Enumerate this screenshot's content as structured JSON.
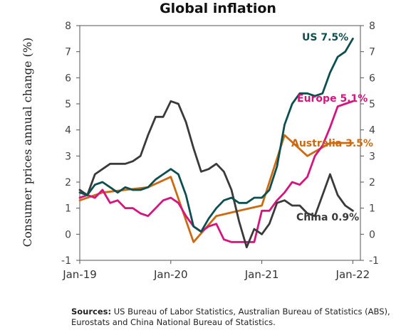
{
  "chart_data": {
    "type": "line",
    "title": "Global inflation",
    "ylabel": "Consumer prices annual change (%)",
    "xlabel": "",
    "ylim": [
      -1,
      8
    ],
    "yticks": [
      -1,
      0,
      1,
      2,
      3,
      4,
      5,
      6,
      7,
      8
    ],
    "xlim": [
      0,
      37
    ],
    "xticks": [
      {
        "label": "Jan-19",
        "x": 0
      },
      {
        "label": "Jan-20",
        "x": 12
      },
      {
        "label": "Jan-21",
        "x": 24
      },
      {
        "label": "Jan-22",
        "x": 36
      }
    ],
    "grid": false,
    "series": [
      {
        "name": "US 7.5%",
        "color": "#0d4f4f",
        "x": [
          0,
          1,
          2,
          3,
          4,
          5,
          6,
          7,
          8,
          9,
          10,
          11,
          12,
          13,
          14,
          15,
          16,
          17,
          18,
          19,
          20,
          21,
          22,
          23,
          24,
          25,
          26,
          27,
          28,
          29,
          30,
          31,
          32,
          33,
          34,
          35,
          36
        ],
        "values": [
          1.6,
          1.5,
          1.9,
          2.0,
          1.8,
          1.6,
          1.8,
          1.7,
          1.7,
          1.8,
          2.1,
          2.3,
          2.5,
          2.3,
          1.5,
          0.3,
          0.1,
          0.6,
          1.0,
          1.3,
          1.4,
          1.2,
          1.2,
          1.4,
          1.4,
          1.7,
          2.6,
          4.2,
          5.0,
          5.4,
          5.4,
          5.3,
          5.4,
          6.2,
          6.8,
          7.0,
          7.5
        ]
      },
      {
        "name": "Europe 5.1%",
        "color": "#d6147e",
        "x": [
          0,
          1,
          2,
          3,
          4,
          5,
          6,
          7,
          8,
          9,
          10,
          11,
          12,
          13,
          14,
          15,
          16,
          17,
          18,
          19,
          20,
          21,
          22,
          23,
          24,
          25,
          26,
          27,
          28,
          29,
          30,
          31,
          32,
          33,
          34,
          35,
          36
        ],
        "values": [
          1.4,
          1.5,
          1.4,
          1.7,
          1.2,
          1.3,
          1.0,
          1.0,
          0.8,
          0.7,
          1.0,
          1.3,
          1.4,
          1.2,
          0.7,
          0.3,
          0.1,
          0.3,
          0.4,
          -0.2,
          -0.3,
          -0.3,
          -0.3,
          -0.3,
          0.9,
          0.9,
          1.3,
          1.6,
          2.0,
          1.9,
          2.2,
          3.0,
          3.4,
          4.1,
          4.9,
          5.0,
          5.1
        ]
      },
      {
        "name": "Australia 3.5%",
        "color": "#cc6a12",
        "x": [
          0,
          3,
          6,
          9,
          12,
          15,
          18,
          21,
          24,
          27,
          30,
          33,
          36
        ],
        "values": [
          1.3,
          1.6,
          1.7,
          1.8,
          2.2,
          -0.3,
          0.7,
          0.9,
          1.1,
          3.8,
          3.0,
          3.5,
          3.5
        ]
      },
      {
        "name": "China 0.9%",
        "color": "#3a3a3a",
        "x": [
          0,
          1,
          2,
          3,
          4,
          5,
          6,
          7,
          8,
          9,
          10,
          11,
          12,
          13,
          14,
          15,
          16,
          17,
          18,
          19,
          20,
          21,
          22,
          23,
          24,
          25,
          26,
          27,
          28,
          29,
          30,
          31,
          32,
          33,
          34,
          35,
          36
        ],
        "values": [
          1.7,
          1.5,
          2.3,
          2.5,
          2.7,
          2.7,
          2.7,
          2.8,
          3.0,
          3.8,
          4.5,
          4.5,
          5.1,
          5.0,
          4.3,
          3.3,
          2.4,
          2.5,
          2.7,
          2.4,
          1.7,
          0.5,
          -0.5,
          0.2,
          0.0,
          0.4,
          1.2,
          1.3,
          1.1,
          1.1,
          0.8,
          0.7,
          1.5,
          2.3,
          1.5,
          1.1,
          0.9
        ]
      }
    ]
  },
  "sources": {
    "label": "Sources:",
    "text": "US Bureau of Labor Statistics, Australian Bureau of Statistics (ABS), Eurostats and China National Bureau of Statistics."
  }
}
